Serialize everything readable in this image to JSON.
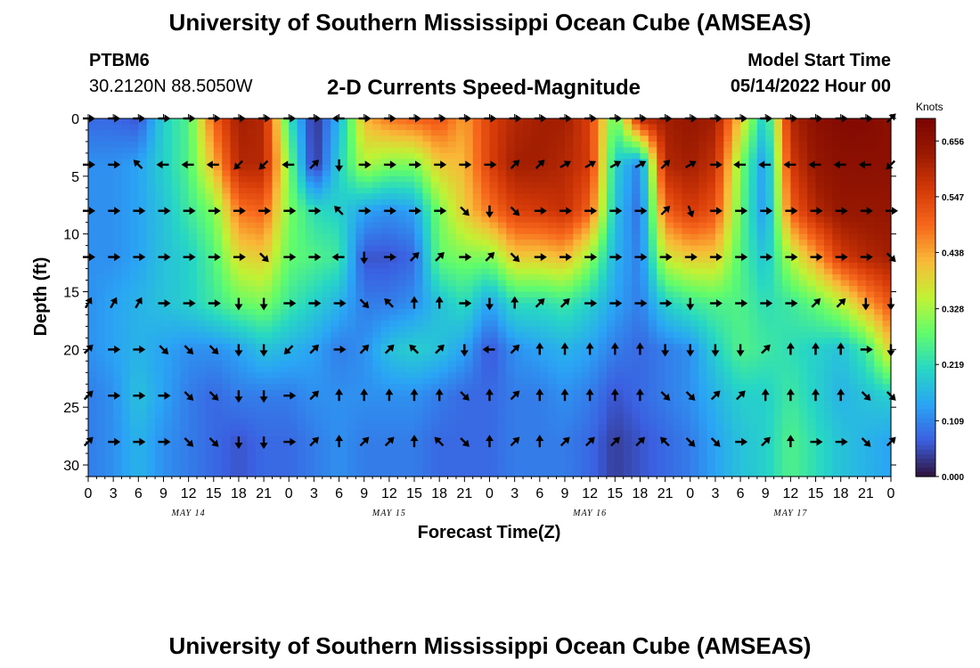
{
  "header": {
    "title": "University of Southern Mississippi Ocean Cube (AMSEAS)",
    "station": "PTBM6",
    "coords": "30.2120N  88.5050W",
    "subtitle": "2-D Currents Speed-Magnitude",
    "model_start_label": "Model Start Time",
    "model_start_value": "05/14/2022 Hour 00",
    "footer_title": "University of Southern Mississippi Ocean Cube (AMSEAS)"
  },
  "chart_data": {
    "type": "heatmap",
    "title": "2-D Currents Speed-Magnitude",
    "xlabel": "Forecast Time(Z)",
    "ylabel": "Depth (ft)",
    "x_unit": "hours from 05/14/2022 00Z",
    "x_range": [
      0,
      96
    ],
    "y_range": [
      0,
      31
    ],
    "x_tick_values": [
      0,
      3,
      6,
      9,
      12,
      15,
      18,
      21,
      24,
      27,
      30,
      33,
      36,
      39,
      42,
      45,
      48,
      51,
      54,
      57,
      60,
      63,
      66,
      69,
      72,
      75,
      78,
      81,
      84,
      87,
      90,
      93,
      96
    ],
    "x_tick_labels": [
      "0",
      "3",
      "6",
      "9",
      "12",
      "15",
      "18",
      "21",
      "0",
      "3",
      "6",
      "9",
      "12",
      "15",
      "18",
      "21",
      "0",
      "3",
      "6",
      "9",
      "12",
      "15",
      "18",
      "21",
      "0",
      "3",
      "6",
      "9",
      "12",
      "15",
      "18",
      "21",
      "0"
    ],
    "y_tick_values": [
      0,
      5,
      10,
      15,
      20,
      25,
      30
    ],
    "y_tick_labels": [
      "0",
      "5",
      "10",
      "15",
      "20",
      "25",
      "30"
    ],
    "date_labels": [
      {
        "hour": 12,
        "text": "MAY 14"
      },
      {
        "hour": 36,
        "text": "MAY 15"
      },
      {
        "hour": 60,
        "text": "MAY 16"
      },
      {
        "hour": 84,
        "text": "MAY 17"
      }
    ],
    "colorbar": {
      "title": "Knots",
      "ticks": [
        0.0,
        0.109,
        0.219,
        0.328,
        0.438,
        0.547,
        0.656
      ],
      "tick_labels": [
        "0.000",
        "0.109",
        "0.219",
        "0.328",
        "0.438",
        "0.547",
        "0.656"
      ],
      "range": [
        0,
        0.7
      ],
      "colors": [
        "#30123b",
        "#3b5fe0",
        "#2aa4f5",
        "#27d7c4",
        "#61fc6c",
        "#c2f234",
        "#f9ba38",
        "#f7681c",
        "#d53a08",
        "#9a1a01",
        "#7a0403"
      ]
    },
    "times": [
      0,
      3,
      6,
      9,
      12,
      15,
      18,
      21,
      24,
      27,
      30,
      33,
      36,
      39,
      42,
      45,
      48,
      51,
      54,
      57,
      60,
      63,
      66,
      69,
      72,
      75,
      78,
      81,
      84,
      87,
      90,
      93,
      96
    ],
    "depths": [
      0,
      4,
      8,
      12,
      16,
      20,
      24,
      28,
      31
    ],
    "speed_knots": [
      [
        0.08,
        0.08,
        0.06,
        0.2,
        0.26,
        0.5,
        0.62,
        0.6,
        0.24,
        0.02,
        0.16,
        0.42,
        0.48,
        0.5,
        0.52,
        0.44,
        0.55,
        0.6,
        0.62,
        0.62,
        0.55,
        0.26,
        0.6,
        0.62,
        0.64,
        0.62,
        0.4,
        0.18,
        0.6,
        0.66,
        0.68,
        0.68,
        0.66
      ],
      [
        0.12,
        0.12,
        0.14,
        0.2,
        0.26,
        0.42,
        0.6,
        0.6,
        0.3,
        0.02,
        0.2,
        0.34,
        0.3,
        0.3,
        0.4,
        0.42,
        0.55,
        0.62,
        0.62,
        0.6,
        0.56,
        0.2,
        0.1,
        0.6,
        0.62,
        0.58,
        0.3,
        0.12,
        0.56,
        0.64,
        0.66,
        0.66,
        0.66
      ],
      [
        0.12,
        0.12,
        0.14,
        0.18,
        0.24,
        0.3,
        0.48,
        0.5,
        0.3,
        0.22,
        0.2,
        0.14,
        0.12,
        0.14,
        0.3,
        0.4,
        0.48,
        0.55,
        0.56,
        0.58,
        0.5,
        0.18,
        0.08,
        0.5,
        0.56,
        0.52,
        0.28,
        0.12,
        0.5,
        0.6,
        0.64,
        0.64,
        0.64
      ],
      [
        0.12,
        0.12,
        0.14,
        0.18,
        0.2,
        0.26,
        0.38,
        0.4,
        0.28,
        0.26,
        0.24,
        0.06,
        0.06,
        0.08,
        0.28,
        0.3,
        0.3,
        0.4,
        0.4,
        0.42,
        0.32,
        0.16,
        0.1,
        0.36,
        0.4,
        0.4,
        0.26,
        0.18,
        0.34,
        0.44,
        0.56,
        0.6,
        0.62
      ],
      [
        0.12,
        0.14,
        0.16,
        0.18,
        0.2,
        0.24,
        0.28,
        0.3,
        0.24,
        0.2,
        0.16,
        0.1,
        0.1,
        0.12,
        0.18,
        0.22,
        0.14,
        0.22,
        0.22,
        0.24,
        0.2,
        0.14,
        0.1,
        0.2,
        0.24,
        0.26,
        0.26,
        0.22,
        0.24,
        0.28,
        0.34,
        0.44,
        0.52
      ],
      [
        0.12,
        0.14,
        0.16,
        0.14,
        0.12,
        0.12,
        0.14,
        0.18,
        0.16,
        0.14,
        0.1,
        0.12,
        0.18,
        0.2,
        0.18,
        0.14,
        0.06,
        0.12,
        0.14,
        0.16,
        0.14,
        0.1,
        0.08,
        0.1,
        0.12,
        0.2,
        0.26,
        0.24,
        0.22,
        0.2,
        0.18,
        0.24,
        0.4
      ],
      [
        0.1,
        0.12,
        0.18,
        0.14,
        0.1,
        0.08,
        0.1,
        0.1,
        0.1,
        0.12,
        0.12,
        0.12,
        0.12,
        0.12,
        0.1,
        0.08,
        0.08,
        0.1,
        0.1,
        0.12,
        0.1,
        0.06,
        0.08,
        0.1,
        0.12,
        0.16,
        0.2,
        0.2,
        0.24,
        0.2,
        0.16,
        0.18,
        0.2
      ],
      [
        0.1,
        0.12,
        0.16,
        0.12,
        0.1,
        0.08,
        0.06,
        0.08,
        0.08,
        0.1,
        0.12,
        0.1,
        0.1,
        0.1,
        0.08,
        0.08,
        0.08,
        0.1,
        0.1,
        0.1,
        0.08,
        0.04,
        0.06,
        0.08,
        0.1,
        0.14,
        0.18,
        0.2,
        0.26,
        0.22,
        0.18,
        0.16,
        0.14
      ],
      [
        0.1,
        0.12,
        0.16,
        0.12,
        0.1,
        0.08,
        0.06,
        0.08,
        0.08,
        0.1,
        0.12,
        0.1,
        0.1,
        0.1,
        0.08,
        0.08,
        0.08,
        0.1,
        0.1,
        0.1,
        0.08,
        0.04,
        0.06,
        0.08,
        0.1,
        0.14,
        0.18,
        0.2,
        0.26,
        0.22,
        0.18,
        0.16,
        0.14
      ]
    ],
    "arrow_times": [
      0,
      3,
      6,
      9,
      12,
      15,
      18,
      21,
      24,
      27,
      30,
      33,
      36,
      39,
      42,
      45,
      48,
      51,
      54,
      57,
      60,
      63,
      66,
      69,
      72,
      75,
      78,
      81,
      84,
      87,
      90,
      93,
      96
    ],
    "arrow_depths": [
      0,
      4,
      8,
      12,
      16,
      20,
      24,
      28
    ],
    "arrow_directions_deg": [
      [
        90,
        90,
        90,
        90,
        90,
        90,
        90,
        90,
        90,
        90,
        270,
        90,
        90,
        90,
        90,
        90,
        90,
        90,
        90,
        90,
        90,
        90,
        90,
        90,
        90,
        90,
        90,
        90,
        90,
        90,
        90,
        90,
        45
      ],
      [
        90,
        90,
        315,
        270,
        270,
        270,
        225,
        225,
        270,
        45,
        180,
        90,
        90,
        90,
        90,
        90,
        90,
        45,
        45,
        60,
        60,
        60,
        60,
        45,
        60,
        90,
        270,
        270,
        270,
        270,
        270,
        270,
        225
      ],
      [
        90,
        90,
        90,
        90,
        90,
        90,
        90,
        90,
        90,
        90,
        315,
        90,
        90,
        90,
        90,
        135,
        180,
        135,
        90,
        90,
        90,
        90,
        90,
        45,
        160,
        90,
        90,
        90,
        90,
        90,
        90,
        90,
        90
      ],
      [
        90,
        90,
        90,
        90,
        90,
        90,
        90,
        135,
        90,
        90,
        270,
        180,
        90,
        45,
        45,
        90,
        45,
        135,
        90,
        90,
        90,
        90,
        90,
        90,
        90,
        90,
        90,
        90,
        90,
        90,
        90,
        90,
        135
      ],
      [
        30,
        30,
        30,
        90,
        90,
        90,
        180,
        180,
        90,
        90,
        90,
        135,
        315,
        0,
        0,
        90,
        180,
        0,
        45,
        45,
        90,
        90,
        90,
        90,
        180,
        90,
        90,
        90,
        90,
        45,
        45,
        180,
        180
      ],
      [
        45,
        90,
        90,
        135,
        135,
        135,
        180,
        180,
        225,
        45,
        90,
        45,
        45,
        315,
        45,
        180,
        270,
        45,
        0,
        0,
        0,
        0,
        0,
        180,
        180,
        180,
        180,
        45,
        0,
        0,
        0,
        90,
        180
      ],
      [
        45,
        90,
        90,
        90,
        135,
        135,
        180,
        180,
        90,
        45,
        0,
        0,
        0,
        0,
        0,
        135,
        0,
        45,
        0,
        0,
        0,
        0,
        0,
        135,
        135,
        45,
        45,
        0,
        0,
        0,
        0,
        135,
        135
      ],
      [
        45,
        90,
        90,
        90,
        135,
        135,
        180,
        180,
        90,
        45,
        0,
        45,
        45,
        0,
        315,
        135,
        0,
        45,
        0,
        45,
        45,
        45,
        45,
        315,
        135,
        135,
        90,
        45,
        0,
        90,
        90,
        135,
        45
      ]
    ]
  }
}
